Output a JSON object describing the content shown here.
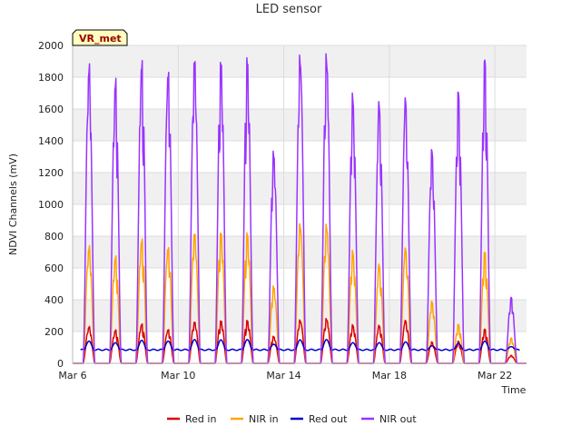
{
  "chart_data": {
    "type": "line",
    "title": "LED sensor",
    "xlabel": "Time",
    "ylabel": "NDVI Channels (mV)",
    "ylim": [
      0,
      2000
    ],
    "xlim": [
      0,
      17.2
    ],
    "x_unit": "days since Mar 6",
    "yticks": [
      0,
      200,
      400,
      600,
      800,
      1000,
      1200,
      1400,
      1600,
      1800,
      2000
    ],
    "xticks": [
      {
        "value": 0,
        "label": "Mar 6"
      },
      {
        "value": 4,
        "label": "Mar 10"
      },
      {
        "value": 8,
        "label": "Mar 14"
      },
      {
        "value": 12,
        "label": "Mar 18"
      },
      {
        "value": 16,
        "label": "Mar 22"
      }
    ],
    "grid": true,
    "legend_position": "bottom",
    "site_tag": "VR_met",
    "series": [
      {
        "name": "Red in",
        "color": "#dd0000",
        "kind": "daily",
        "daily_peaks": [
          235,
          215,
          255,
          220,
          270,
          278,
          280,
          175,
          278,
          285,
          245,
          240,
          270,
          135,
          140,
          215,
          50
        ]
      },
      {
        "name": "NIR in",
        "color": "#ffa500",
        "kind": "daily",
        "daily_peaks": [
          750,
          690,
          805,
          755,
          850,
          855,
          850,
          500,
          895,
          885,
          715,
          625,
          725,
          390,
          245,
          700,
          160
        ]
      },
      {
        "name": "Red out",
        "color": "#0000cc",
        "kind": "baseline",
        "baseline": 85,
        "daily_peaks": [
          140,
          130,
          145,
          140,
          150,
          148,
          150,
          120,
          148,
          150,
          130,
          130,
          135,
          110,
          125,
          140,
          105
        ]
      },
      {
        "name": "NIR out",
        "color": "#9933ff",
        "kind": "daily",
        "daily_peaks": [
          1910,
          1830,
          1960,
          1900,
          1985,
          1975,
          1990,
          1370,
          1975,
          1970,
          1710,
          1650,
          1670,
          1345,
          1710,
          1910,
          415
        ]
      }
    ]
  }
}
